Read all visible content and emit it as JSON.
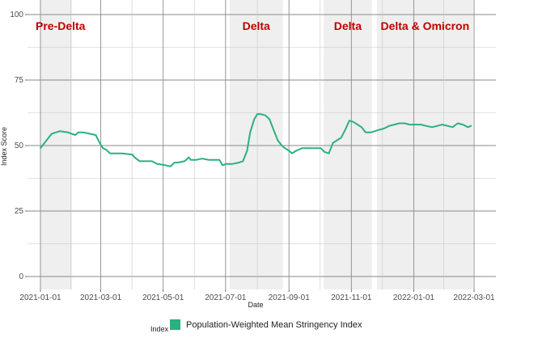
{
  "chart_data": {
    "type": "line",
    "xlabel": "Date",
    "ylabel": "Index Score",
    "xlim": [
      "2021-01-01",
      "2022-03-01"
    ],
    "ylim": [
      0,
      100
    ],
    "yticks": [
      0,
      25,
      50,
      75,
      100
    ],
    "xticks": [
      "2021-01-01",
      "2021-03-01",
      "2021-05-01",
      "2021-07-01",
      "2021-09-01",
      "2021-11-01",
      "2022-01-01",
      "2022-03-01"
    ],
    "xtick_labels": [
      "2021-01-01",
      "2021-03-01",
      "2021-05-01",
      "2021-07-01",
      "2021-09-01",
      "2021-11-01",
      "2022-01-01",
      "2022-03-01"
    ],
    "grid": true,
    "series": [
      {
        "name": "Population‐Weighted Mean Stringency Index",
        "color": "#2bb07f",
        "x": [
          "2021-01-01",
          "2021-01-03",
          "2021-01-07",
          "2021-01-12",
          "2021-01-20",
          "2021-01-28",
          "2021-02-04",
          "2021-02-07",
          "2021-02-12",
          "2021-02-18",
          "2021-02-24",
          "2021-02-28",
          "2021-03-03",
          "2021-03-06",
          "2021-03-10",
          "2021-03-15",
          "2021-03-22",
          "2021-04-01",
          "2021-04-03",
          "2021-04-08",
          "2021-04-15",
          "2021-04-20",
          "2021-04-25",
          "2021-05-03",
          "2021-05-08",
          "2021-05-12",
          "2021-05-15",
          "2021-05-22",
          "2021-05-26",
          "2021-05-28",
          "2021-06-02",
          "2021-06-08",
          "2021-06-15",
          "2021-06-25",
          "2021-06-28",
          "2021-07-02",
          "2021-07-08",
          "2021-07-14",
          "2021-07-18",
          "2021-07-22",
          "2021-07-25",
          "2021-07-29",
          "2021-08-01",
          "2021-08-04",
          "2021-08-09",
          "2021-08-13",
          "2021-08-17",
          "2021-08-21",
          "2021-08-25",
          "2021-08-28",
          "2021-09-01",
          "2021-09-04",
          "2021-09-08",
          "2021-09-14",
          "2021-09-20",
          "2021-09-26",
          "2021-10-02",
          "2021-10-06",
          "2021-10-10",
          "2021-10-14",
          "2021-10-18",
          "2021-10-22",
          "2021-10-26",
          "2021-10-30",
          "2021-11-03",
          "2021-11-07",
          "2021-11-11",
          "2021-11-15",
          "2021-11-20",
          "2021-11-24",
          "2021-11-28",
          "2021-12-03",
          "2021-12-08",
          "2021-12-13",
          "2021-12-18",
          "2021-12-23",
          "2021-12-28",
          "2022-01-03",
          "2022-01-08",
          "2022-01-13",
          "2022-01-19",
          "2022-01-24",
          "2022-01-29",
          "2022-02-03",
          "2022-02-08",
          "2022-02-13",
          "2022-02-18",
          "2022-02-23",
          "2022-02-26"
        ],
        "values": [
          49,
          50,
          52,
          54.5,
          55.5,
          55,
          54,
          55,
          55,
          54.5,
          54,
          51,
          49,
          48.5,
          47,
          47,
          47,
          46.5,
          45.5,
          44,
          44,
          44,
          43,
          42.5,
          42,
          43.5,
          43.5,
          44,
          45.5,
          44.5,
          44.5,
          45,
          44.5,
          44.5,
          42.5,
          43,
          43,
          43.5,
          44,
          48,
          55,
          60,
          62,
          62,
          61.5,
          60,
          56,
          52,
          50,
          49,
          48,
          47,
          48,
          49,
          49,
          49,
          49,
          47.5,
          47,
          51,
          52,
          53,
          56,
          59.5,
          59,
          58,
          57,
          55,
          55,
          55.5,
          56,
          56.5,
          57.5,
          58,
          58.5,
          58.5,
          58,
          58,
          58,
          57.5,
          57,
          57.5,
          58,
          57.5,
          57,
          58.5,
          58,
          57,
          57.5
        ]
      }
    ],
    "shaded_periods": [
      {
        "label": "Pre-Delta",
        "start": "2021-01-01",
        "end": "2021-02-01",
        "label_align": "start"
      },
      {
        "label": "Delta",
        "start": "2021-07-05",
        "end": "2021-08-26",
        "label_align": "center"
      },
      {
        "label": "Delta",
        "start": "2021-10-05",
        "end": "2021-11-21",
        "label_align": "center"
      },
      {
        "label": "Delta & Omicron",
        "start": "2021-11-26",
        "end": "2022-02-28",
        "label_align": "center"
      }
    ],
    "legend": {
      "title": "Index",
      "position": "bottom",
      "entries": [
        "Population‐Weighted Mean Stringency Index"
      ]
    }
  }
}
